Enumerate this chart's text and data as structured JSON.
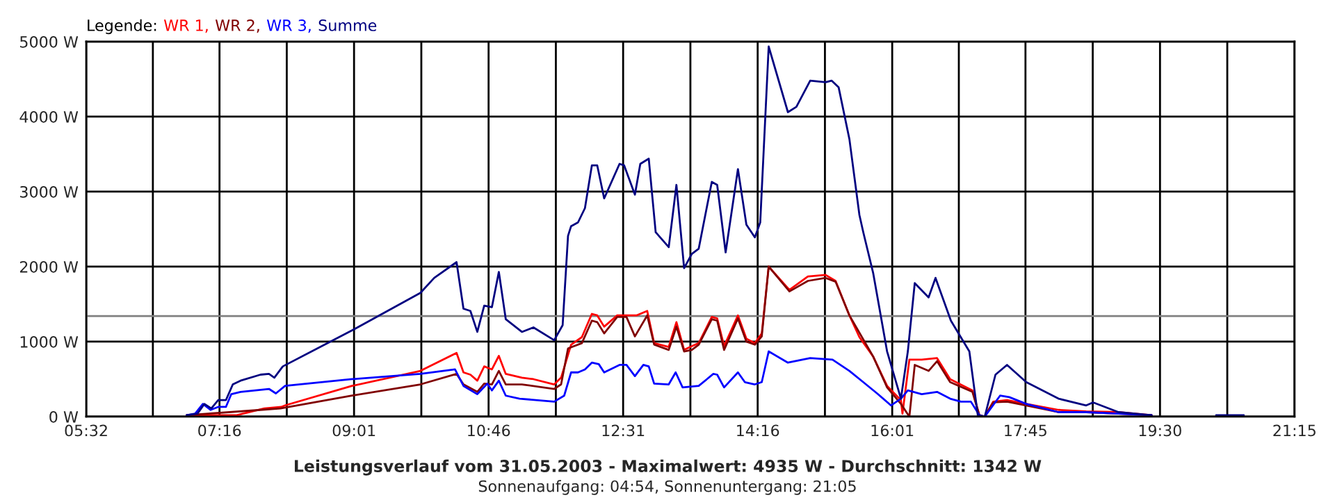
{
  "chart_data": {
    "type": "line",
    "title": "Leistungsverlauf vom 31.05.2003 - Maximalwert: 4935 W - Durchschnitt: 1342 W",
    "subtitle": "Sonnenaufgang: 04:54, Sonnenuntergang: 21:05",
    "legend_title": "Legende:",
    "legend": "top left",
    "grid": true,
    "xlim": [
      5.5333,
      21.25
    ],
    "xticks": [
      {
        "value": 5.5333,
        "label": "05:32"
      },
      {
        "value": 6.4,
        "label": null
      },
      {
        "value": 7.2667,
        "label": "07:16"
      },
      {
        "value": 8.1417,
        "label": null
      },
      {
        "value": 9.0167,
        "label": "09:01"
      },
      {
        "value": 9.8917,
        "label": null
      },
      {
        "value": 10.7667,
        "label": "10:46"
      },
      {
        "value": 11.6417,
        "label": null
      },
      {
        "value": 12.5167,
        "label": "12:31"
      },
      {
        "value": 13.3917,
        "label": null
      },
      {
        "value": 14.2667,
        "label": "14:16"
      },
      {
        "value": 15.1417,
        "label": null
      },
      {
        "value": 16.0167,
        "label": "16:01"
      },
      {
        "value": 16.8833,
        "label": null
      },
      {
        "value": 17.75,
        "label": "17:45"
      },
      {
        "value": 18.625,
        "label": null
      },
      {
        "value": 19.5,
        "label": "19:30"
      },
      {
        "value": 20.375,
        "label": null
      },
      {
        "value": 21.25,
        "label": "21:15"
      }
    ],
    "ylim": [
      0,
      5000
    ],
    "yticks": [
      {
        "value": 0,
        "label": "0 W"
      },
      {
        "value": 1000,
        "label": "1000 W"
      },
      {
        "value": 2000,
        "label": "2000 W"
      },
      {
        "value": 3000,
        "label": "3000 W"
      },
      {
        "value": 4000,
        "label": "4000 W"
      },
      {
        "value": 5000,
        "label": "5000 W"
      }
    ],
    "ref_lines": [
      {
        "axis": "y",
        "value": 1342,
        "label": null,
        "color": "#808080"
      }
    ],
    "series": [
      {
        "name": "WR 1,",
        "color": "#ff0000",
        "x": [
          6.84,
          7.49,
          7.85,
          8.07,
          8.12,
          8.99,
          9.88,
          10.35,
          10.44,
          10.53,
          10.62,
          10.71,
          10.81,
          10.9,
          10.99,
          11.2,
          11.35,
          11.62,
          11.71,
          11.84,
          11.98,
          12.11,
          12.18,
          12.27,
          12.44,
          12.56,
          12.69,
          12.83,
          12.92,
          13.11,
          13.21,
          13.31,
          13.41,
          13.5,
          13.67,
          13.74,
          13.83,
          14.01,
          14.12,
          14.23,
          14.32,
          14.41,
          14.68,
          14.92,
          15.15,
          15.28,
          15.46,
          15.59,
          15.77,
          15.95,
          16.13,
          16.15,
          16.24,
          16.4,
          16.6,
          16.77,
          17.06,
          17.15,
          17.22,
          17.33,
          17.51,
          17.76,
          18.18,
          18.54,
          18.96,
          19.39
        ],
        "values": [
          20,
          20,
          110,
          130,
          150,
          410,
          610,
          850,
          590,
          560,
          480,
          670,
          630,
          810,
          570,
          520,
          500,
          430,
          520,
          960,
          1060,
          1370,
          1350,
          1200,
          1350,
          1350,
          1350,
          1410,
          980,
          930,
          1260,
          890,
          940,
          980,
          1330,
          1310,
          940,
          1350,
          1040,
          980,
          1110,
          2000,
          1690,
          1870,
          1890,
          1810,
          1350,
          1060,
          800,
          410,
          220,
          40,
          760,
          760,
          780,
          500,
          350,
          20,
          0,
          200,
          220,
          170,
          90,
          70,
          60,
          20
        ]
      },
      {
        "name": "WR 2,",
        "color": "#800000",
        "x": [
          6.84,
          7.8,
          8.06,
          8.99,
          9.88,
          10.35,
          10.44,
          10.62,
          10.71,
          10.81,
          10.9,
          10.99,
          11.2,
          11.62,
          11.71,
          11.8,
          11.98,
          12.11,
          12.18,
          12.27,
          12.44,
          12.56,
          12.67,
          12.83,
          12.92,
          13.11,
          13.21,
          13.31,
          13.41,
          13.5,
          13.67,
          13.74,
          13.83,
          14.01,
          14.12,
          14.23,
          14.32,
          14.41,
          14.68,
          14.92,
          15.15,
          15.28,
          15.46,
          15.77,
          15.95,
          16.13,
          16.24,
          16.31,
          16.49,
          16.6,
          16.77,
          17.06,
          17.15,
          17.22,
          17.33,
          17.51,
          17.76,
          18.18,
          18.54,
          18.96,
          19.39
        ],
        "values": [
          20,
          90,
          110,
          280,
          430,
          570,
          430,
          330,
          440,
          430,
          610,
          430,
          430,
          370,
          430,
          910,
          980,
          1280,
          1260,
          1110,
          1330,
          1330,
          1070,
          1350,
          960,
          890,
          1200,
          870,
          890,
          960,
          1300,
          1280,
          890,
          1310,
          1000,
          960,
          1070,
          2000,
          1670,
          1810,
          1850,
          1800,
          1350,
          800,
          390,
          170,
          0,
          690,
          610,
          740,
          460,
          330,
          20,
          0,
          190,
          200,
          150,
          60,
          60,
          40,
          20
        ]
      },
      {
        "name": "WR 3,",
        "color": "#0000ff",
        "x": [
          6.84,
          6.95,
          7.05,
          7.15,
          7.25,
          7.35,
          7.42,
          7.54,
          7.91,
          8.0,
          8.12,
          8.99,
          9.88,
          10.33,
          10.44,
          10.62,
          10.75,
          10.81,
          10.9,
          10.99,
          11.17,
          11.62,
          11.75,
          11.84,
          11.93,
          12.02,
          12.11,
          12.2,
          12.27,
          12.47,
          12.56,
          12.67,
          12.78,
          12.85,
          12.92,
          13.11,
          13.2,
          13.29,
          13.5,
          13.69,
          13.74,
          13.83,
          14.01,
          14.1,
          14.23,
          14.32,
          14.41,
          14.66,
          14.95,
          15.24,
          15.46,
          15.64,
          15.82,
          16.0,
          16.13,
          16.22,
          16.4,
          16.6,
          16.77,
          16.91,
          17.04,
          17.15,
          17.22,
          17.42,
          17.54,
          17.76,
          18.18,
          18.54,
          18.96,
          19.39
        ],
        "values": [
          20,
          40,
          170,
          90,
          130,
          130,
          300,
          330,
          370,
          310,
          410,
          500,
          570,
          630,
          410,
          300,
          440,
          350,
          480,
          280,
          240,
          200,
          280,
          590,
          590,
          630,
          720,
          700,
          590,
          690,
          690,
          540,
          690,
          670,
          440,
          430,
          590,
          390,
          410,
          570,
          560,
          390,
          590,
          460,
          430,
          460,
          870,
          720,
          780,
          760,
          610,
          460,
          310,
          150,
          240,
          350,
          300,
          330,
          240,
          200,
          200,
          20,
          0,
          280,
          260,
          170,
          60,
          60,
          40,
          20
        ]
      },
      {
        "name": "Summe",
        "color": "#000080",
        "x": [
          6.84,
          6.98,
          7.07,
          7.16,
          7.25,
          7.35,
          7.44,
          7.54,
          7.8,
          7.91,
          7.98,
          8.09,
          8.99,
          9.88,
          10.06,
          10.35,
          10.44,
          10.53,
          10.62,
          10.71,
          10.81,
          10.9,
          10.99,
          11.2,
          11.35,
          11.62,
          11.73,
          11.8,
          11.84,
          11.93,
          12.02,
          12.11,
          12.18,
          12.27,
          12.47,
          12.53,
          12.67,
          12.74,
          12.85,
          12.94,
          13.11,
          13.21,
          13.31,
          13.41,
          13.5,
          13.67,
          13.74,
          13.85,
          14.01,
          14.12,
          14.23,
          14.3,
          14.41,
          14.66,
          14.77,
          14.95,
          15.15,
          15.23,
          15.32,
          15.46,
          15.59,
          15.64,
          15.77,
          15.95,
          16.13,
          16.22,
          16.31,
          16.49,
          16.58,
          16.78,
          17.02,
          17.13,
          17.22,
          17.36,
          17.51,
          17.76,
          18.18,
          18.54,
          18.63,
          18.96,
          19.39,
          19.8,
          20.23,
          20.59
        ],
        "values": [
          20,
          40,
          170,
          110,
          220,
          220,
          430,
          480,
          560,
          570,
          520,
          670,
          1150,
          1650,
          1850,
          2060,
          1440,
          1410,
          1130,
          1480,
          1460,
          1930,
          1300,
          1130,
          1190,
          1020,
          1220,
          2410,
          2540,
          2590,
          2780,
          3350,
          3350,
          2910,
          3370,
          3350,
          2960,
          3370,
          3440,
          2460,
          2260,
          3090,
          1980,
          2170,
          2240,
          3130,
          3090,
          2190,
          3300,
          2560,
          2390,
          2590,
          4935,
          4060,
          4130,
          4480,
          4460,
          4480,
          4390,
          3700,
          2690,
          2460,
          1910,
          870,
          240,
          870,
          1780,
          1590,
          1850,
          1280,
          870,
          20,
          0,
          560,
          690,
          460,
          240,
          150,
          190,
          60,
          20,
          null,
          20,
          20
        ]
      }
    ]
  }
}
